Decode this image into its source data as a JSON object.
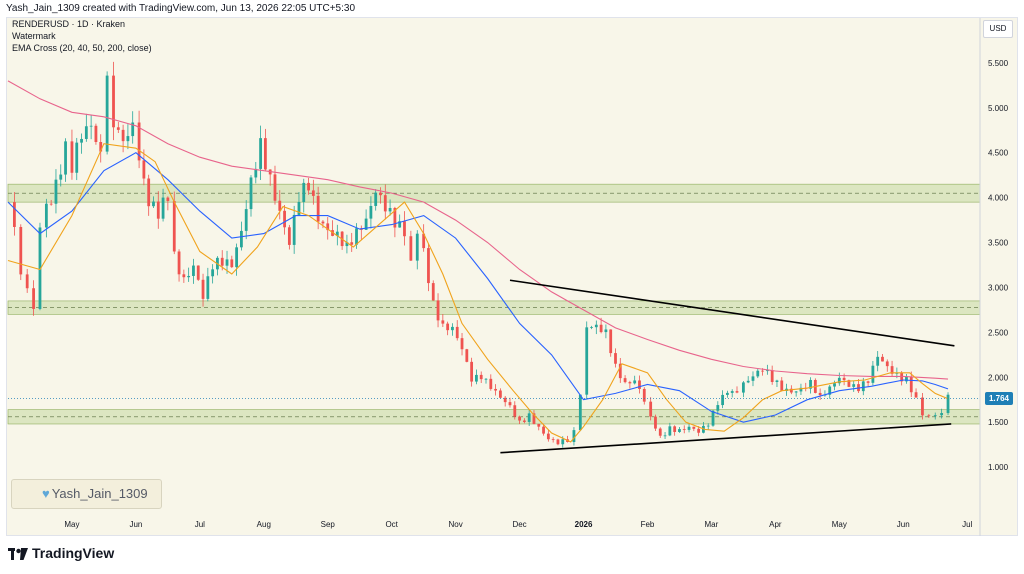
{
  "header": {
    "text": "Yash_Jain_1309 created with TradingView.com, Jun 13, 2026 22:05 UTC+5:30"
  },
  "legend": {
    "symbol_line": "RENDERUSD · 1D · Kraken",
    "watermark_line": "Watermark",
    "indicator_line": "EMA Cross (20, 40, 50, 200, close)"
  },
  "currency": "USD",
  "watermark_label": "Yash_Jain_1309",
  "branding": {
    "name": "TradingView"
  },
  "colors": {
    "up": "#26a69a",
    "down": "#ef5350",
    "ema_fast": "#f0a31c",
    "ema_mid": "#2962ff",
    "ema_slow": "#e8648c",
    "zone_fill": "#c5d9a0",
    "trendline": "#000000",
    "price_tag": "#1e7fb6"
  },
  "chart_data": {
    "type": "candlestick",
    "symbol": "RENDERUSD",
    "interval": "1D",
    "exchange": "Kraken",
    "current_price": 1.764,
    "y_ticks": [
      1.0,
      1.5,
      2.0,
      2.5,
      3.0,
      3.5,
      4.0,
      4.5,
      5.0,
      5.5
    ],
    "y_tick_labels": [
      "1.000",
      "1.500",
      "2.000",
      "2.500",
      "3.000",
      "3.500",
      "4.000",
      "4.500",
      "5.000",
      "5.500"
    ],
    "ylim": [
      0.5,
      6.0
    ],
    "x_labels": [
      "May",
      "Jun",
      "Jul",
      "Aug",
      "Sep",
      "Oct",
      "Nov",
      "Dec",
      "2026",
      "Feb",
      "Mar",
      "Apr",
      "May",
      "Jun",
      "Jul"
    ],
    "x_label_months": [
      4,
      5,
      6,
      7,
      8,
      9,
      10,
      11,
      12,
      13,
      14,
      15,
      16,
      17,
      18
    ],
    "xlim_months": [
      3.0,
      18.2
    ],
    "zones": [
      {
        "low": 3.95,
        "high": 4.15
      },
      {
        "low": 2.7,
        "high": 2.85
      },
      {
        "low": 1.48,
        "high": 1.64
      }
    ],
    "trendlines": [
      {
        "x1": 10.85,
        "y1": 3.08,
        "x2": 17.8,
        "y2": 2.35
      },
      {
        "x1": 10.7,
        "y1": 1.16,
        "x2": 17.75,
        "y2": 1.48
      }
    ],
    "close_series": {
      "months": [
        3.0,
        3.2,
        3.4,
        3.5,
        3.6,
        3.75,
        3.9,
        4.0,
        4.15,
        4.3,
        4.45,
        4.55,
        4.65,
        4.8,
        4.95,
        5.05,
        5.2,
        5.35,
        5.5,
        5.6,
        5.75,
        5.9,
        6.05,
        6.2,
        6.35,
        6.5,
        6.65,
        6.8,
        6.95,
        7.1,
        7.25,
        7.4,
        7.55,
        7.7,
        7.85,
        8.0,
        8.15,
        8.3,
        8.45,
        8.6,
        8.75,
        8.9,
        9.05,
        9.2,
        9.3,
        9.4,
        9.5,
        9.65,
        9.8,
        9.95,
        10.1,
        10.25,
        10.4,
        10.55,
        10.7,
        10.85,
        11.0,
        11.15,
        11.3,
        11.45,
        11.6,
        11.75,
        11.85,
        11.95,
        12.05,
        12.2,
        12.35,
        12.5,
        12.65,
        12.8,
        12.95,
        13.05,
        13.2,
        13.35,
        13.5,
        13.65,
        13.8,
        13.95,
        14.1,
        14.25,
        14.4,
        14.5,
        14.65,
        14.8,
        14.95,
        15.1,
        15.25,
        15.4,
        15.55,
        15.7,
        15.85,
        16.0,
        16.15,
        16.3,
        16.45,
        16.6,
        16.75,
        16.9,
        17.05,
        17.2,
        17.3,
        17.4,
        17.5,
        17.6,
        17.7
      ],
      "values": [
        3.95,
        3.2,
        2.75,
        3.7,
        3.9,
        4.2,
        4.6,
        4.3,
        4.75,
        4.9,
        4.5,
        5.3,
        4.9,
        4.6,
        4.7,
        4.5,
        4.0,
        3.8,
        3.95,
        3.4,
        3.1,
        3.2,
        2.85,
        3.25,
        3.35,
        3.3,
        3.6,
        4.1,
        4.55,
        4.25,
        3.9,
        3.5,
        3.95,
        4.1,
        3.8,
        3.7,
        3.6,
        3.4,
        3.55,
        3.75,
        4.15,
        3.95,
        3.7,
        3.55,
        3.3,
        3.6,
        3.45,
        2.85,
        2.55,
        2.5,
        2.3,
        2.0,
        2.05,
        1.9,
        1.75,
        1.65,
        1.5,
        1.6,
        1.45,
        1.3,
        1.25,
        1.3,
        1.4,
        1.8,
        2.6,
        2.55,
        2.45,
        2.1,
        1.95,
        2.0,
        1.75,
        1.55,
        1.35,
        1.45,
        1.4,
        1.42,
        1.38,
        1.5,
        1.75,
        1.85,
        1.8,
        1.95,
        2.05,
        2.1,
        1.95,
        1.85,
        1.85,
        1.9,
        1.95,
        1.75,
        1.85,
        2.0,
        1.95,
        1.9,
        1.95,
        2.2,
        2.1,
        2.05,
        2.0,
        1.75,
        1.6,
        1.55,
        1.58,
        1.62,
        1.764
      ]
    },
    "ema_20": {
      "months": [
        3.0,
        3.5,
        4.0,
        4.5,
        5.0,
        5.3,
        5.6,
        6.0,
        6.5,
        6.9,
        7.3,
        7.7,
        8.0,
        8.4,
        8.8,
        9.2,
        9.5,
        9.8,
        10.1,
        10.5,
        10.9,
        11.2,
        11.5,
        11.8,
        12.0,
        12.3,
        12.6,
        13.0,
        13.3,
        13.6,
        13.9,
        14.2,
        14.5,
        14.8,
        15.1,
        15.5,
        16.0,
        16.4,
        16.8,
        17.1,
        17.3,
        17.5,
        17.7
      ],
      "values": [
        3.3,
        3.2,
        3.8,
        4.6,
        4.55,
        4.4,
        3.95,
        3.4,
        3.15,
        3.45,
        3.9,
        3.8,
        3.65,
        3.45,
        3.7,
        3.95,
        3.6,
        3.15,
        2.6,
        2.2,
        1.85,
        1.6,
        1.38,
        1.28,
        1.45,
        1.75,
        2.15,
        2.05,
        1.75,
        1.5,
        1.42,
        1.4,
        1.55,
        1.75,
        1.85,
        1.88,
        1.95,
        1.97,
        2.05,
        2.05,
        1.93,
        1.82,
        1.76
      ]
    },
    "ema_40": {
      "months": [
        3.0,
        3.5,
        4.0,
        4.5,
        5.0,
        5.5,
        6.0,
        6.5,
        7.0,
        7.5,
        8.0,
        8.5,
        9.0,
        9.5,
        10.0,
        10.5,
        11.0,
        11.5,
        12.0,
        12.5,
        13.0,
        13.5,
        14.0,
        14.5,
        15.0,
        15.5,
        16.0,
        16.5,
        17.0,
        17.3,
        17.5,
        17.7
      ],
      "values": [
        3.95,
        3.6,
        3.85,
        4.3,
        4.5,
        4.2,
        3.85,
        3.55,
        3.6,
        3.8,
        3.8,
        3.65,
        3.7,
        3.8,
        3.55,
        3.1,
        2.6,
        2.25,
        1.75,
        1.82,
        1.92,
        1.85,
        1.62,
        1.5,
        1.58,
        1.75,
        1.85,
        1.9,
        1.97,
        1.96,
        1.92,
        1.87
      ]
    },
    "ema_200": {
      "months": [
        3.0,
        3.5,
        4.0,
        4.5,
        5.0,
        5.5,
        6.0,
        6.5,
        7.0,
        7.5,
        8.0,
        8.5,
        9.0,
        9.5,
        10.0,
        10.5,
        11.0,
        11.5,
        12.0,
        12.5,
        13.0,
        13.5,
        14.0,
        14.5,
        15.0,
        15.5,
        16.0,
        16.5,
        17.0,
        17.5,
        17.7
      ],
      "values": [
        5.3,
        5.1,
        4.95,
        4.9,
        4.8,
        4.6,
        4.45,
        4.35,
        4.3,
        4.25,
        4.2,
        4.12,
        4.05,
        3.95,
        3.75,
        3.5,
        3.2,
        2.95,
        2.75,
        2.55,
        2.42,
        2.3,
        2.2,
        2.12,
        2.07,
        2.04,
        2.02,
        2.01,
        2.01,
        1.99,
        1.98
      ]
    }
  }
}
